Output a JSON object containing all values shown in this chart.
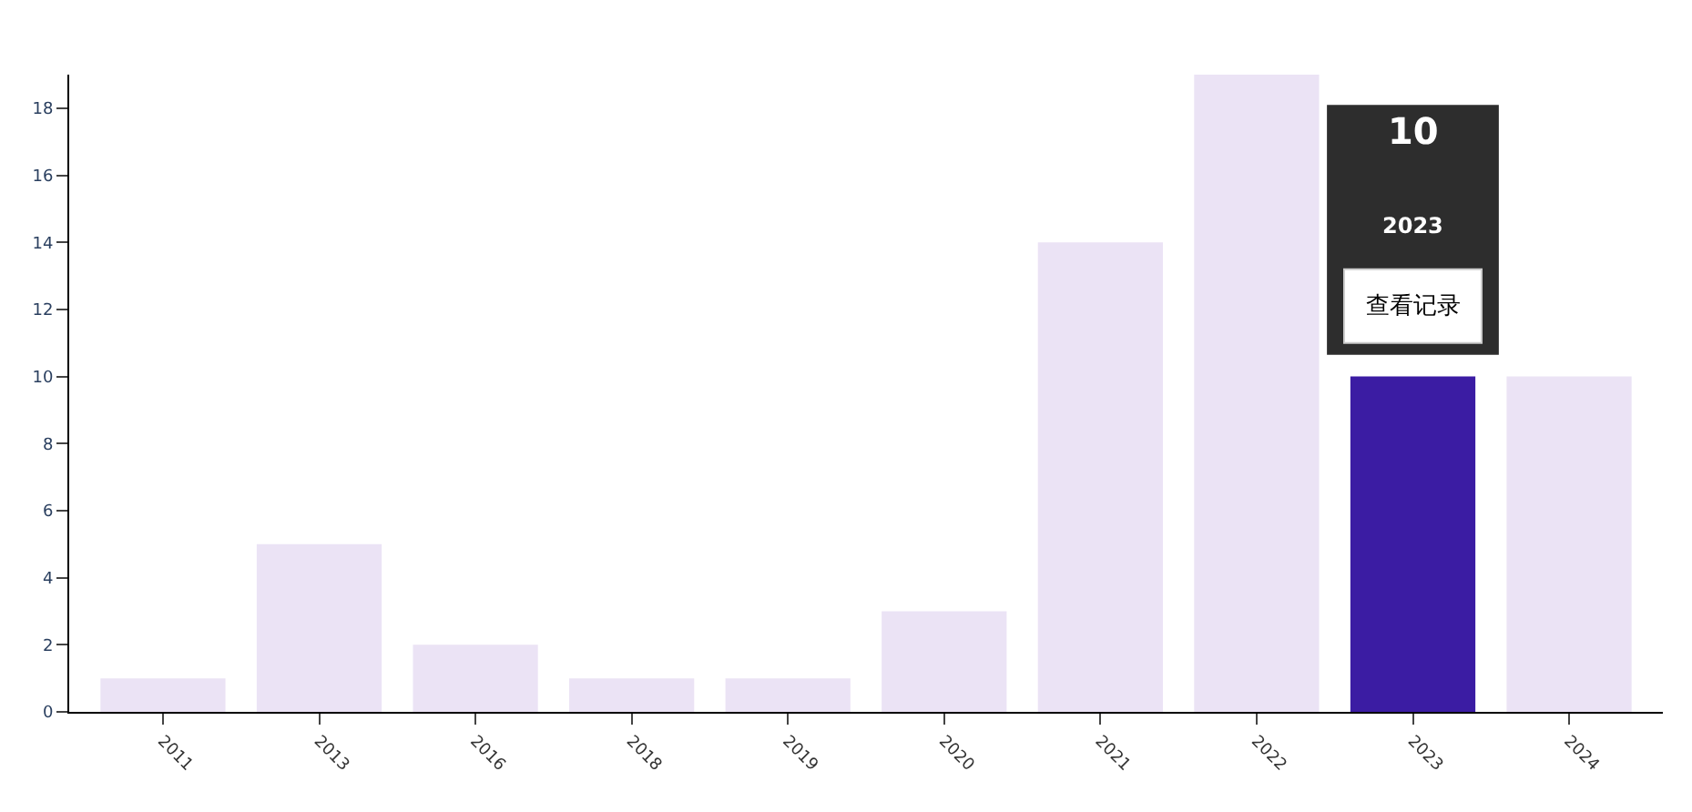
{
  "chart_data": {
    "type": "bar",
    "categories": [
      "2011",
      "2013",
      "2016",
      "2018",
      "2019",
      "2020",
      "2021",
      "2022",
      "2023",
      "2024"
    ],
    "values": [
      1,
      5,
      2,
      1,
      1,
      3,
      14,
      19,
      10,
      10
    ],
    "colors": [
      "#ebe3f5",
      "#ebe3f5",
      "#ebe3f5",
      "#ebe3f5",
      "#ebe3f5",
      "#ebe3f5",
      "#ebe3f5",
      "#ebe3f5",
      "#3b1ca3",
      "#ebe3f5"
    ],
    "ylim": [
      0,
      19
    ],
    "yticks": [
      0,
      2,
      4,
      6,
      8,
      10,
      12,
      14,
      16,
      18
    ],
    "annotations": [
      "10",
      "2023",
      "查看记录"
    ]
  }
}
